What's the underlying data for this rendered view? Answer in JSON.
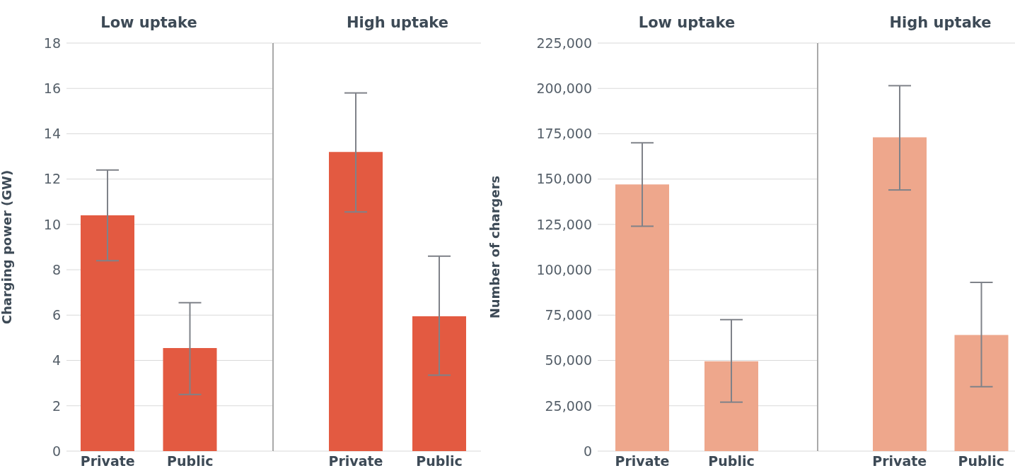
{
  "chart_data": [
    {
      "type": "bar",
      "title": "Low uptake",
      "ylabel": "Charging power (GW)",
      "categories": [
        "Private",
        "Public"
      ],
      "values": [
        10.4,
        4.55
      ],
      "color": "#e35a41",
      "errors": [
        [
          8.4,
          12.4
        ],
        [
          2.5,
          6.55
        ]
      ],
      "ylim": [
        0,
        18
      ],
      "yticks": [
        0,
        2,
        4,
        6,
        8,
        10,
        12,
        14,
        16,
        18
      ],
      "grid": "y"
    },
    {
      "type": "bar",
      "title": "High uptake",
      "categories": [
        "Private",
        "Public"
      ],
      "values": [
        13.2,
        5.95
      ],
      "color": "#e35a41",
      "errors": [
        [
          10.55,
          15.8
        ],
        [
          3.35,
          8.6
        ]
      ],
      "ylim": [
        0,
        18
      ],
      "yticks": [
        0,
        2,
        4,
        6,
        8,
        10,
        12,
        14,
        16,
        18
      ],
      "grid": "y",
      "tick_labels": "x"
    },
    {
      "type": "bar",
      "title": "Low uptake",
      "ylabel": "Number of chargers",
      "categories": [
        "Private",
        "Public"
      ],
      "values": [
        147000,
        49500
      ],
      "color": "#eea78c",
      "errors": [
        [
          124000,
          170000
        ],
        [
          27000,
          72500
        ]
      ],
      "ylim": [
        0,
        225000
      ],
      "yticks": [
        0,
        {
          "value": 25000,
          "label": "25,000"
        },
        {
          "value": 50000,
          "label": "50,000"
        },
        {
          "value": 75000,
          "label": "75,000"
        },
        {
          "value": 100000,
          "label": "100,000"
        },
        {
          "value": 125000,
          "label": "125,000"
        },
        {
          "value": 150000,
          "label": "150,000"
        },
        {
          "value": 175000,
          "label": "175,000"
        },
        {
          "value": 200000,
          "label": "200,000"
        },
        {
          "value": 225000,
          "label": "225,000"
        }
      ],
      "grid": "y"
    },
    {
      "type": "bar",
      "title": "High uptake",
      "categories": [
        "Private",
        "Public"
      ],
      "values": [
        173000,
        64000
      ],
      "color": "#eea78c",
      "errors": [
        [
          144000,
          201500
        ],
        [
          35500,
          93000
        ]
      ],
      "ylim": [
        0,
        225000
      ],
      "yticks": [
        0,
        25000,
        50000,
        75000,
        100000,
        125000,
        150000,
        175000,
        200000,
        225000
      ],
      "grid": "y",
      "tick_labels": "x"
    }
  ]
}
